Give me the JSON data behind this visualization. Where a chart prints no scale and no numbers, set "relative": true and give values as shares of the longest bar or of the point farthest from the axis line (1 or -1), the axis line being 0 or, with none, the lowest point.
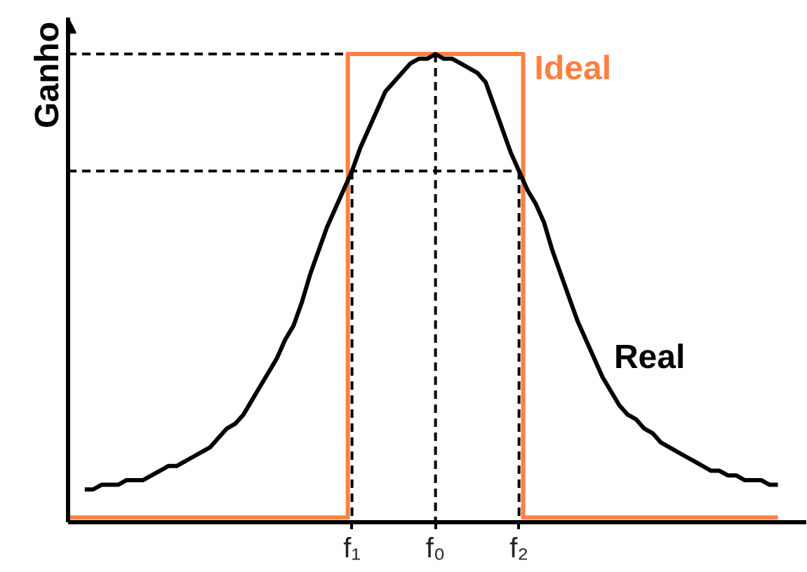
{
  "chart_data": {
    "type": "line",
    "relative": true,
    "ylabel": "Ganho",
    "grid": false,
    "categories": [
      null,
      null,
      null,
      null,
      null,
      null,
      null,
      null,
      null,
      null,
      null,
      null,
      null,
      null,
      null,
      null,
      null,
      null,
      null,
      null,
      null,
      null,
      null,
      null,
      null,
      null,
      null,
      null,
      null,
      null,
      null,
      null,
      null,
      null,
      "f₁",
      null,
      null,
      null,
      null,
      null,
      null,
      null,
      null,
      null,
      "f₀",
      null,
      null,
      null,
      null,
      null,
      null,
      null,
      null,
      null,
      "f₂",
      null,
      null,
      null,
      null,
      null,
      null,
      null,
      null,
      null,
      null,
      null,
      null,
      null,
      null,
      null,
      null,
      null,
      null,
      null,
      null,
      null,
      null,
      null,
      null,
      null,
      null,
      null,
      null,
      null,
      null,
      null,
      null,
      null,
      null
    ],
    "series": [
      {
        "color": "#000000",
        "line_style": "dashed",
        "values": [
          1,
          1,
          1,
          1,
          1,
          1,
          1,
          1,
          1,
          1,
          1,
          1,
          1,
          1,
          1,
          1,
          1,
          1,
          1,
          1,
          1,
          1,
          1,
          1,
          1,
          1,
          1,
          1,
          1,
          1,
          1,
          1,
          1,
          1,
          null,
          null,
          null,
          null,
          null,
          null,
          null,
          null,
          null,
          null,
          null,
          null,
          null,
          null,
          null,
          null,
          null,
          null,
          null,
          null,
          null,
          null,
          null,
          null,
          null,
          null,
          null,
          null,
          null,
          null,
          null,
          null,
          null,
          null,
          null,
          null,
          null,
          null,
          null,
          null,
          null,
          null,
          null,
          null,
          null,
          null,
          null,
          null,
          null,
          null,
          null,
          null,
          null,
          null,
          null
        ]
      },
      {
        "color": "#000000",
        "line_style": "dashed",
        "values": [
          0.75,
          0.75,
          0.75,
          0.75,
          0.75,
          0.75,
          0.75,
          0.75,
          0.75,
          0.75,
          0.75,
          0.75,
          0.75,
          0.75,
          0.75,
          0.75,
          0.75,
          0.75,
          0.75,
          0.75,
          0.75,
          0.75,
          0.75,
          0.75,
          0.75,
          0.75,
          0.75,
          0.75,
          0.75,
          0.75,
          0.75,
          0.75,
          0.75,
          0.75,
          0.75,
          0.75,
          0.75,
          0.75,
          0.75,
          0.75,
          0.75,
          0.75,
          0.75,
          0.75,
          0.75,
          0.75,
          0.75,
          0.75,
          0.75,
          0.75,
          0.75,
          0.75,
          0.75,
          0.75,
          0.75,
          null,
          null,
          null,
          null,
          null,
          null,
          null,
          null,
          null,
          null,
          null,
          null,
          null,
          null,
          null,
          null,
          null,
          null,
          null,
          null,
          null,
          null,
          null,
          null,
          null,
          null,
          null,
          null,
          null,
          null,
          null,
          null,
          null,
          null
        ]
      },
      {
        "color": "#000000",
        "line_style": "dashed",
        "x": [
          "f₁",
          "f₁"
        ],
        "values": [
          0.75,
          0
        ]
      },
      {
        "color": "#000000",
        "line_style": "dashed",
        "x": [
          "f₀",
          "f₀"
        ],
        "values": [
          1,
          0
        ]
      },
      {
        "color": "#000000",
        "line_style": "dashed",
        "x": [
          "f₂",
          "f₂"
        ],
        "values": [
          0.75,
          0
        ]
      },
      {
        "name": "Ideal",
        "type": "step",
        "color": "#ff8040",
        "values": [
          0.01,
          0.01,
          0.01,
          0.01,
          0.01,
          0.01,
          0.01,
          0.01,
          0.01,
          0.01,
          0.01,
          0.01,
          0.01,
          0.01,
          0.01,
          0.01,
          0.01,
          0.01,
          0.01,
          0.01,
          0.01,
          0.01,
          0.01,
          0.01,
          0.01,
          0.01,
          0.01,
          0.01,
          0.01,
          0.01,
          0.01,
          0.01,
          0.01,
          0.01,
          1,
          1,
          1,
          1,
          1,
          1,
          1,
          1,
          1,
          1,
          1,
          1,
          1,
          1,
          1,
          1,
          1,
          1,
          1,
          1,
          1,
          0.01,
          0.01,
          0.01,
          0.01,
          0.01,
          0.01,
          0.01,
          0.01,
          0.01,
          0.01,
          0.01,
          0.01,
          0.01,
          0.01,
          0.01,
          0.01,
          0.01,
          0.01,
          0.01,
          0.01,
          0.01,
          0.01,
          0.01,
          0.01,
          0.01,
          0.01,
          0.01,
          0.01,
          0.01,
          0.01,
          0.01,
          null,
          null,
          null
        ]
      },
      {
        "name": "Real",
        "color": "#000000",
        "values": [
          null,
          null,
          0.07,
          0.07,
          0.08,
          0.08,
          0.08,
          0.09,
          0.09,
          0.09,
          0.1,
          0.11,
          0.12,
          0.12,
          0.13,
          0.14,
          0.15,
          0.16,
          0.18,
          0.2,
          0.21,
          0.23,
          0.26,
          0.29,
          0.32,
          0.35,
          0.39,
          0.42,
          0.47,
          0.53,
          0.58,
          0.63,
          0.67,
          0.71,
          0.75,
          0.8,
          0.84,
          0.88,
          0.92,
          0.94,
          0.96,
          0.98,
          0.99,
          0.99,
          1,
          0.99,
          0.99,
          0.98,
          0.97,
          0.96,
          0.94,
          0.89,
          0.84,
          0.79,
          0.75,
          0.71,
          0.68,
          0.64,
          0.58,
          0.53,
          0.48,
          0.43,
          0.39,
          0.35,
          0.31,
          0.28,
          0.25,
          0.23,
          0.22,
          0.2,
          0.19,
          0.17,
          0.16,
          0.15,
          0.14,
          0.13,
          0.12,
          0.11,
          0.11,
          0.1,
          0.1,
          0.09,
          0.09,
          0.09,
          0.08,
          0.08,
          null,
          null,
          null
        ]
      }
    ]
  }
}
